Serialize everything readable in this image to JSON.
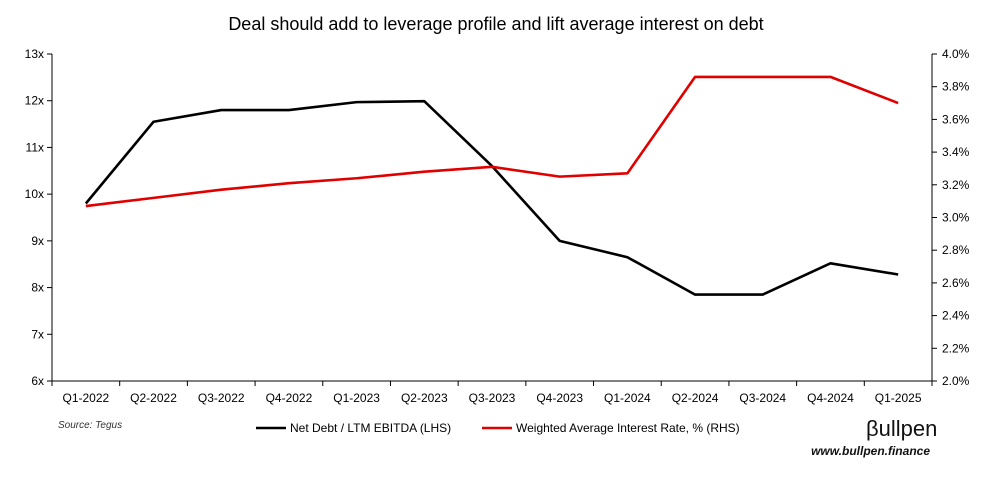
{
  "chart_data": {
    "type": "line",
    "title": "Deal should add to leverage profile and lift average interest on debt",
    "categories": [
      "Q1-2022",
      "Q2-2022",
      "Q3-2022",
      "Q4-2022",
      "Q1-2023",
      "Q2-2023",
      "Q3-2023",
      "Q4-2023",
      "Q1-2024",
      "Q2-2024",
      "Q3-2024",
      "Q4-2024",
      "Q1-2025"
    ],
    "left_axis": {
      "ylim": [
        6,
        13
      ],
      "ticks": [
        6,
        7,
        8,
        9,
        10,
        11,
        12,
        13
      ],
      "tick_labels": [
        "6x",
        "7x",
        "8x",
        "9x",
        "10x",
        "11x",
        "12x",
        "13x"
      ]
    },
    "right_axis": {
      "ylim": [
        2.0,
        4.0
      ],
      "ticks": [
        2.0,
        2.2,
        2.4,
        2.6,
        2.8,
        3.0,
        3.2,
        3.4,
        3.6,
        3.8,
        4.0
      ],
      "tick_labels": [
        "2.0%",
        "2.2%",
        "2.4%",
        "2.6%",
        "2.8%",
        "3.0%",
        "3.2%",
        "3.4%",
        "3.6%",
        "3.8%",
        "4.0%"
      ]
    },
    "series": [
      {
        "name": "Net Debt / LTM EBITDA (LHS)",
        "axis": "left",
        "color": "#000000",
        "values": [
          9.8,
          11.55,
          11.8,
          11.8,
          11.97,
          11.99,
          10.6,
          9.0,
          8.65,
          7.85,
          7.85,
          8.52,
          8.28
        ]
      },
      {
        "name": "Weighted Average Interest Rate, % (RHS)",
        "axis": "right",
        "color": "#e00000",
        "values": [
          3.07,
          3.12,
          3.17,
          3.21,
          3.24,
          3.28,
          3.31,
          3.25,
          3.27,
          3.86,
          3.86,
          3.86,
          3.7
        ]
      }
    ],
    "legend_position": "bottom",
    "grid": false
  },
  "footer": {
    "source": "Source: Tegus",
    "brand_logo": "βullpen",
    "brand_url": "www.bullpen.finance"
  }
}
